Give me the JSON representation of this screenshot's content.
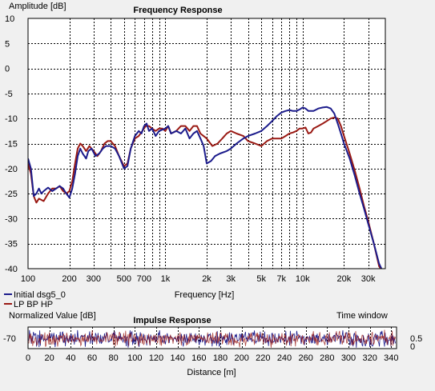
{
  "chart_data": [
    {
      "type": "line",
      "title": "Frequency Response",
      "xlabel": "Frequency [Hz]",
      "ylabel": "Amplitude [dB]",
      "x_scale": "log",
      "xlim": [
        100,
        40000
      ],
      "ylim": [
        -40,
        10
      ],
      "grid": true,
      "legend_position": "bottom-left",
      "y_ticks": [
        10,
        5,
        0,
        -5,
        -10,
        -15,
        -20,
        -25,
        -30,
        -35,
        -40
      ],
      "x_ticks": [
        {
          "value": 100,
          "label": "100"
        },
        {
          "value": 200,
          "label": "200"
        },
        {
          "value": 300,
          "label": "300"
        },
        {
          "value": 500,
          "label": "500"
        },
        {
          "value": 700,
          "label": "700"
        },
        {
          "value": 1000,
          "label": "1k"
        },
        {
          "value": 2000,
          "label": "2k"
        },
        {
          "value": 3000,
          "label": "3k"
        },
        {
          "value": 5000,
          "label": "5k"
        },
        {
          "value": 7000,
          "label": "7k"
        },
        {
          "value": 10000,
          "label": "10k"
        },
        {
          "value": 20000,
          "label": "20k"
        },
        {
          "value": 30000,
          "label": "30k"
        }
      ],
      "series": [
        {
          "name": "Initial dsg5_0",
          "color": "#1c1c8c",
          "points": [
            [
              100,
              -18
            ],
            [
              105,
              -20
            ],
            [
              110,
              -25.5
            ],
            [
              115,
              -25
            ],
            [
              120,
              -24
            ],
            [
              125,
              -25
            ],
            [
              130,
              -24.5
            ],
            [
              140,
              -23.8
            ],
            [
              150,
              -24.5
            ],
            [
              160,
              -24
            ],
            [
              170,
              -23.5
            ],
            [
              180,
              -24
            ],
            [
              190,
              -25
            ],
            [
              200,
              -25.8
            ],
            [
              210,
              -24
            ],
            [
              220,
              -21
            ],
            [
              230,
              -17.5
            ],
            [
              240,
              -16
            ],
            [
              250,
              -17
            ],
            [
              265,
              -18
            ],
            [
              275,
              -16.5
            ],
            [
              290,
              -16
            ],
            [
              310,
              -17.5
            ],
            [
              330,
              -17
            ],
            [
              350,
              -16
            ],
            [
              370,
              -15.5
            ],
            [
              400,
              -15.5
            ],
            [
              430,
              -16
            ],
            [
              460,
              -17.5
            ],
            [
              500,
              -20
            ],
            [
              530,
              -19.5
            ],
            [
              560,
              -16
            ],
            [
              600,
              -13.5
            ],
            [
              640,
              -12.5
            ],
            [
              670,
              -13
            ],
            [
              700,
              -11.5
            ],
            [
              730,
              -11
            ],
            [
              760,
              -12.5
            ],
            [
              800,
              -12
            ],
            [
              850,
              -13.5
            ],
            [
              900,
              -12.5
            ],
            [
              1000,
              -12
            ],
            [
              1050,
              -11.5
            ],
            [
              1100,
              -13
            ],
            [
              1200,
              -12.5
            ],
            [
              1300,
              -13
            ],
            [
              1400,
              -12
            ],
            [
              1500,
              -14
            ],
            [
              1600,
              -13
            ],
            [
              1700,
              -12.5
            ],
            [
              1800,
              -14
            ],
            [
              1900,
              -15.5
            ],
            [
              2000,
              -19
            ],
            [
              2150,
              -18.5
            ],
            [
              2300,
              -17.5
            ],
            [
              2500,
              -17
            ],
            [
              2800,
              -16.5
            ],
            [
              3000,
              -16
            ],
            [
              3300,
              -15
            ],
            [
              3700,
              -14
            ],
            [
              4000,
              -13.5
            ],
            [
              4500,
              -13
            ],
            [
              5000,
              -12.5
            ],
            [
              5500,
              -11.5
            ],
            [
              6000,
              -10.5
            ],
            [
              6500,
              -9.5
            ],
            [
              7000,
              -8.8
            ],
            [
              7500,
              -8.5
            ],
            [
              8000,
              -8.3
            ],
            [
              8500,
              -8.5
            ],
            [
              9000,
              -8.5
            ],
            [
              9500,
              -8.2
            ],
            [
              10000,
              -7.8
            ],
            [
              10500,
              -8
            ],
            [
              11000,
              -8.5
            ],
            [
              12000,
              -8.5
            ],
            [
              13000,
              -8
            ],
            [
              14000,
              -7.8
            ],
            [
              15000,
              -7.7
            ],
            [
              16000,
              -8
            ],
            [
              17000,
              -9
            ],
            [
              18000,
              -11
            ],
            [
              19000,
              -13
            ],
            [
              20000,
              -15
            ],
            [
              22000,
              -18
            ],
            [
              24000,
              -21.5
            ],
            [
              26000,
              -25
            ],
            [
              28000,
              -28
            ],
            [
              30000,
              -31
            ],
            [
              33000,
              -35
            ],
            [
              36000,
              -39
            ],
            [
              37500,
              -40
            ]
          ]
        },
        {
          "name": "LP BP HP",
          "color": "#9a1a14",
          "points": [
            [
              100,
              -19
            ],
            [
              105,
              -21
            ],
            [
              110,
              -25.5
            ],
            [
              115,
              -26.8
            ],
            [
              120,
              -26
            ],
            [
              130,
              -26.5
            ],
            [
              140,
              -25
            ],
            [
              150,
              -24
            ],
            [
              160,
              -24
            ],
            [
              170,
              -23.5
            ],
            [
              180,
              -24.5
            ],
            [
              190,
              -25
            ],
            [
              200,
              -24.5
            ],
            [
              210,
              -22.5
            ],
            [
              220,
              -19
            ],
            [
              230,
              -16
            ],
            [
              240,
              -15
            ],
            [
              250,
              -15.5
            ],
            [
              265,
              -16.5
            ],
            [
              280,
              -15.5
            ],
            [
              300,
              -16.5
            ],
            [
              320,
              -17.5
            ],
            [
              340,
              -16.5
            ],
            [
              360,
              -15
            ],
            [
              380,
              -14.5
            ],
            [
              400,
              -14.5
            ],
            [
              430,
              -15.5
            ],
            [
              460,
              -17.5
            ],
            [
              500,
              -19.5
            ],
            [
              530,
              -19
            ],
            [
              560,
              -16
            ],
            [
              600,
              -14
            ],
            [
              640,
              -13.5
            ],
            [
              680,
              -12.5
            ],
            [
              720,
              -11.5
            ],
            [
              760,
              -11.5
            ],
            [
              800,
              -12
            ],
            [
              850,
              -12.5
            ],
            [
              900,
              -12
            ],
            [
              950,
              -12
            ],
            [
              1000,
              -12.5
            ],
            [
              1050,
              -11.5
            ],
            [
              1100,
              -13
            ],
            [
              1200,
              -12.5
            ],
            [
              1300,
              -11.5
            ],
            [
              1400,
              -11.5
            ],
            [
              1500,
              -12.5
            ],
            [
              1600,
              -11.5
            ],
            [
              1700,
              -11.5
            ],
            [
              1800,
              -13
            ],
            [
              2000,
              -14
            ],
            [
              2200,
              -15.5
            ],
            [
              2400,
              -15
            ],
            [
              2600,
              -14
            ],
            [
              2800,
              -13
            ],
            [
              3000,
              -12.5
            ],
            [
              3300,
              -13
            ],
            [
              3700,
              -13.5
            ],
            [
              4000,
              -14.5
            ],
            [
              4500,
              -15
            ],
            [
              5000,
              -15.5
            ],
            [
              5500,
              -14.5
            ],
            [
              6000,
              -14
            ],
            [
              6500,
              -14
            ],
            [
              7000,
              -14
            ],
            [
              7500,
              -13.5
            ],
            [
              8000,
              -13
            ],
            [
              8500,
              -12.8
            ],
            [
              9000,
              -12.5
            ],
            [
              9500,
              -12
            ],
            [
              10000,
              -12
            ],
            [
              10500,
              -11.8
            ],
            [
              11000,
              -13
            ],
            [
              11500,
              -12.8
            ],
            [
              12000,
              -12
            ],
            [
              13000,
              -11.5
            ],
            [
              14000,
              -11
            ],
            [
              15000,
              -10.5
            ],
            [
              16000,
              -10
            ],
            [
              17000,
              -9.8
            ],
            [
              18000,
              -10
            ],
            [
              19000,
              -11.5
            ],
            [
              20000,
              -13.5
            ],
            [
              22000,
              -17
            ],
            [
              24000,
              -20.5
            ],
            [
              26000,
              -24
            ],
            [
              28000,
              -27.5
            ],
            [
              30000,
              -30.5
            ],
            [
              33000,
              -35
            ],
            [
              36000,
              -39.5
            ],
            [
              37000,
              -40
            ]
          ]
        }
      ]
    },
    {
      "type": "line",
      "title": "Impulse Response",
      "xlabel": "Distance [m]",
      "ylabel": "Normalized Value [dB]",
      "xlim": [
        0,
        345
      ],
      "x_ticks": [
        0,
        20,
        40,
        60,
        80,
        100,
        120,
        140,
        160,
        180,
        200,
        220,
        240,
        260,
        280,
        300,
        320,
        340
      ],
      "y_left_label": "-70",
      "y_right_ticks": [
        "0.5",
        "0"
      ],
      "annotation": "Time window",
      "series": [
        {
          "name": "Initial dsg5_0",
          "color": "#1c1c8c"
        },
        {
          "name": "LP BP HP",
          "color": "#9a1a14"
        }
      ]
    }
  ]
}
